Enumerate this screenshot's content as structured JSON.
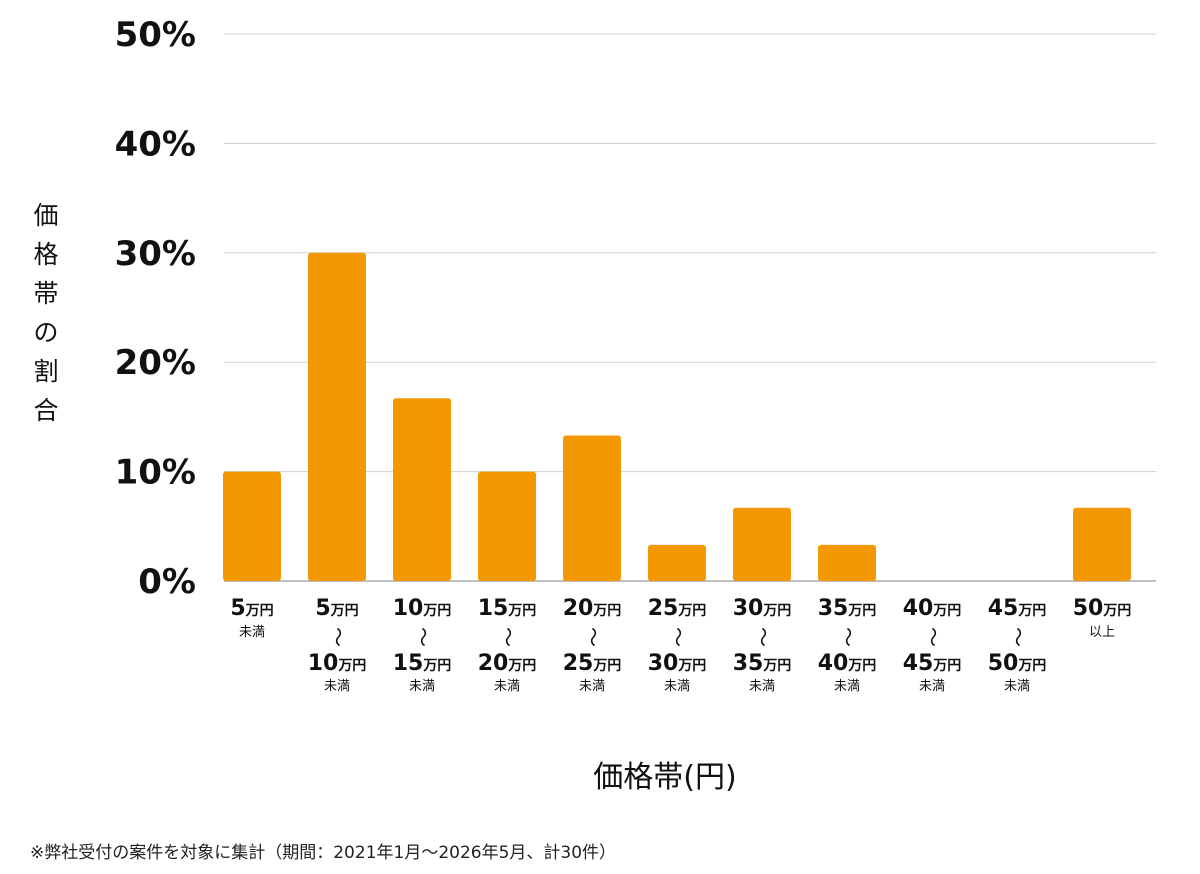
{
  "chart_data": {
    "type": "bar",
    "title": "",
    "xlabel": "価格帯(円)",
    "ylabel": "価格帯の割合",
    "ylim": [
      0,
      50
    ],
    "yticks": [
      "0%",
      "10%",
      "20%",
      "30%",
      "40%",
      "50%"
    ],
    "ytick_values": [
      0,
      10,
      20,
      30,
      40,
      50
    ],
    "grid": true,
    "color": "#f39800",
    "categories": [
      {
        "from": "5",
        "to": "",
        "suffix": "未満"
      },
      {
        "from": "5",
        "to": "10",
        "suffix": "未満"
      },
      {
        "from": "10",
        "to": "15",
        "suffix": "未満"
      },
      {
        "from": "15",
        "to": "20",
        "suffix": "未満"
      },
      {
        "from": "20",
        "to": "25",
        "suffix": "未満"
      },
      {
        "from": "25",
        "to": "30",
        "suffix": "未満"
      },
      {
        "from": "30",
        "to": "35",
        "suffix": "未満"
      },
      {
        "from": "35",
        "to": "40",
        "suffix": "未満"
      },
      {
        "from": "40",
        "to": "45",
        "suffix": "未満"
      },
      {
        "from": "45",
        "to": "50",
        "suffix": "未満"
      },
      {
        "from": "50",
        "to": "",
        "suffix": "以上"
      }
    ],
    "unit": "万円",
    "range_mark": "〜",
    "values": [
      10.0,
      30.0,
      16.7,
      10.0,
      13.3,
      3.3,
      6.7,
      3.3,
      0,
      0,
      6.7
    ]
  },
  "footnote": "※弊社受付の案件を対象に集計（期間：2021年1月〜2026年5月、計30件）"
}
